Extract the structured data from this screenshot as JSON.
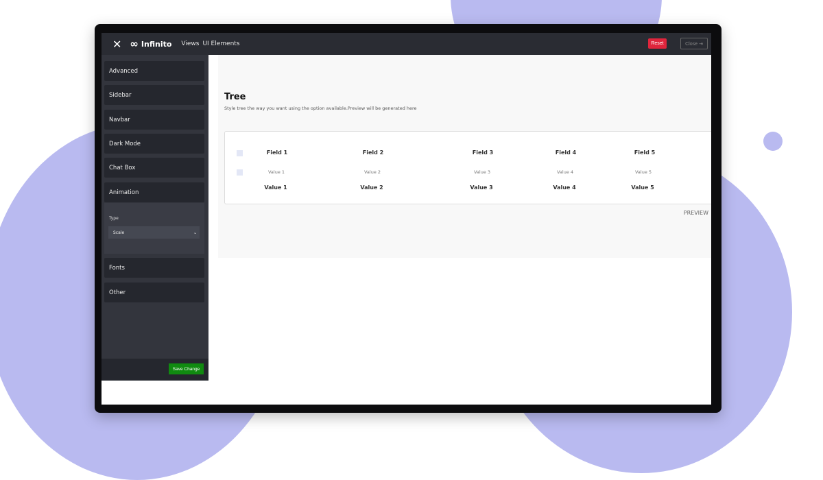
{
  "navbar": {
    "brand": "Infinito",
    "links": [
      "Views",
      "UI Elements"
    ],
    "reset": "Reset",
    "close": "Close"
  },
  "sidebar": {
    "items": [
      "Advanced",
      "Sidebar",
      "Navbar",
      "Dark Mode",
      "Chat Box",
      "Animation",
      "Fonts",
      "Other"
    ],
    "animation_panel": {
      "type_label": "Type",
      "type_value": "Scale"
    },
    "save": "Save Change"
  },
  "main": {
    "title": "Tree",
    "subtitle": "Style tree the way you want using the option available.Preview will be generated here",
    "fields": [
      "Field 1",
      "Field 2",
      "Field 3",
      "Field 4",
      "Field 5"
    ],
    "row1": [
      "Value 1",
      "Value 2",
      "Value 3",
      "Value 4",
      "Value 5"
    ],
    "row2": [
      "Value 1",
      "Value 2",
      "Value 3",
      "Value 4",
      "Value 5"
    ],
    "preview": "PREVIEW"
  },
  "colors": {
    "accent_bg": "#b9baf0",
    "reset": "#e0253c",
    "save": "#108a10"
  }
}
